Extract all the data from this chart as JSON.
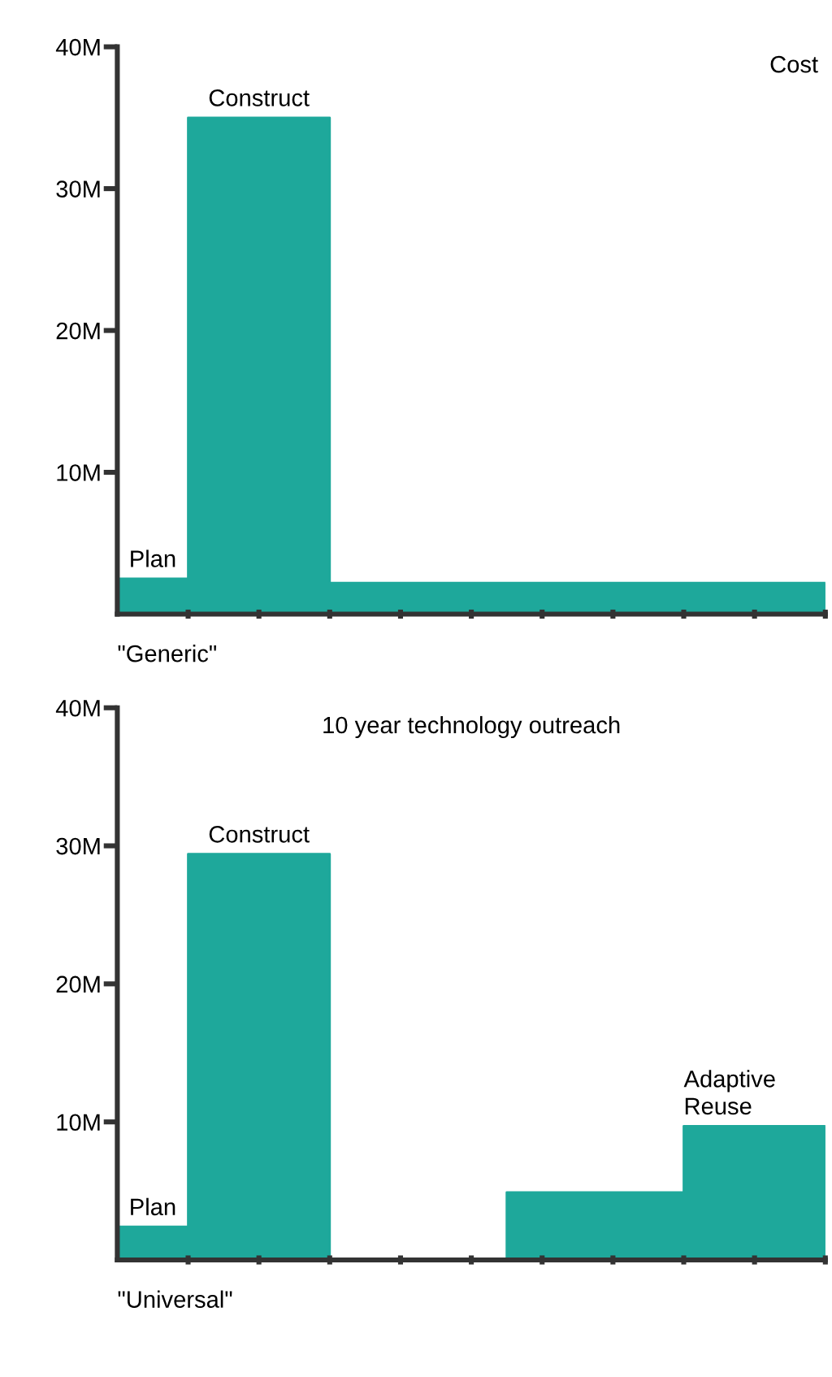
{
  "chart_data": [
    {
      "type": "area",
      "title": "Cost",
      "xlabel": "\"Generic\"",
      "categories": [
        null,
        null,
        null,
        null,
        null,
        null,
        null,
        null,
        null,
        null,
        null,
        null,
        null,
        null,
        null,
        null,
        null,
        null,
        null,
        null,
        null
      ],
      "values": [
        2.5,
        2.5,
        35,
        35,
        35,
        35,
        2.2,
        2.2,
        2.2,
        2.2,
        2.2,
        2.2,
        2.2,
        2.2,
        2.2,
        2.2,
        2.2,
        2.2,
        2.2,
        2.2,
        2.2
      ],
      "color": "#1ea89b",
      "ylim": [
        0,
        40
      ],
      "yticks": [
        {
          "value": 10,
          "label": "10M"
        },
        {
          "value": 20,
          "label": "20M"
        },
        {
          "value": 30,
          "label": "30M"
        },
        {
          "value": 40,
          "label": "40M"
        }
      ],
      "tick_labels": "y",
      "grid": false,
      "annotations": [
        {
          "text": "Plan",
          "y": 2.5
        },
        {
          "text": "Construct",
          "y": 35
        }
      ]
    },
    {
      "type": "area",
      "title": "10 year technology outreach",
      "xlabel": "\"Universal\"",
      "categories": [
        null,
        null,
        null,
        null,
        null,
        null,
        null,
        null,
        null,
        null,
        null,
        null,
        null,
        null,
        null,
        null,
        null,
        null,
        null,
        null,
        null
      ],
      "values": [
        2.4,
        2.4,
        29.4,
        29.4,
        29.4,
        29.4,
        0,
        0,
        0,
        0,
        0,
        4.9,
        4.9,
        4.9,
        4.9,
        4.9,
        9.7,
        9.7,
        9.7,
        9.7,
        9.7
      ],
      "color": "#1ea89b",
      "ylim": [
        0,
        40
      ],
      "yticks": [
        {
          "value": 10,
          "label": "10M"
        },
        {
          "value": 20,
          "label": "20M"
        },
        {
          "value": 30,
          "label": "30M"
        },
        {
          "value": 40,
          "label": "40M"
        }
      ],
      "tick_labels": "y",
      "grid": false,
      "annotations": [
        {
          "text": "Plan",
          "y": 2.4
        },
        {
          "text": "Construct",
          "y": 29.4
        },
        {
          "text": "Adaptive\nReuse",
          "y": 9.7
        }
      ]
    }
  ]
}
